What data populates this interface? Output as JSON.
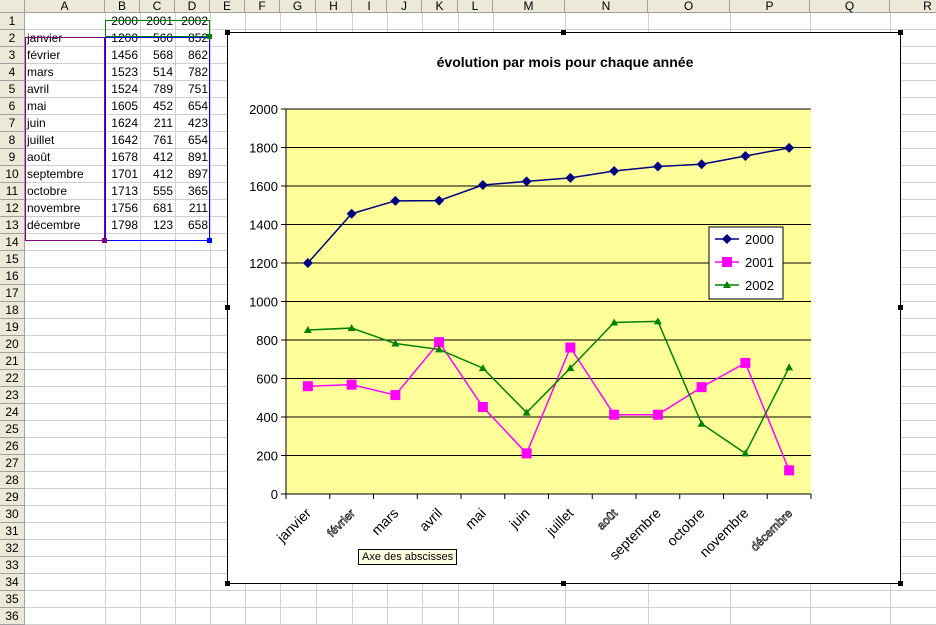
{
  "spreadsheet": {
    "columns": [
      "A",
      "B",
      "C",
      "D",
      "E",
      "F",
      "G",
      "H",
      "I",
      "J",
      "K",
      "L",
      "M",
      "N",
      "O",
      "P",
      "Q",
      "R"
    ],
    "rows": [
      "1",
      "2",
      "3",
      "4",
      "5",
      "6",
      "7",
      "8",
      "9",
      "10",
      "11",
      "12",
      "13",
      "14",
      "15",
      "16",
      "17",
      "18",
      "19",
      "20",
      "21",
      "22",
      "23",
      "24",
      "25",
      "26",
      "27",
      "28",
      "29",
      "30",
      "31",
      "32",
      "33",
      "34",
      "35",
      "36"
    ],
    "header_row": [
      "2000",
      "2001",
      "2002"
    ],
    "data_rows": [
      {
        "month": "janvier",
        "v2000": "1200",
        "v2001": "560",
        "v2002": "852"
      },
      {
        "month": "février",
        "v2000": "1456",
        "v2001": "568",
        "v2002": "862"
      },
      {
        "month": "mars",
        "v2000": "1523",
        "v2001": "514",
        "v2002": "782"
      },
      {
        "month": "avril",
        "v2000": "1524",
        "v2001": "789",
        "v2002": "751"
      },
      {
        "month": "mai",
        "v2000": "1605",
        "v2001": "452",
        "v2002": "654"
      },
      {
        "month": "juin",
        "v2000": "1624",
        "v2001": "211",
        "v2002": "423"
      },
      {
        "month": "juillet",
        "v2000": "1642",
        "v2001": "761",
        "v2002": "654"
      },
      {
        "month": "août",
        "v2000": "1678",
        "v2001": "412",
        "v2002": "891"
      },
      {
        "month": "septembre",
        "v2000": "1701",
        "v2001": "412",
        "v2002": "897"
      },
      {
        "month": "octobre",
        "v2000": "1713",
        "v2001": "555",
        "v2002": "365"
      },
      {
        "month": "novembre",
        "v2000": "1756",
        "v2001": "681",
        "v2002": "211"
      },
      {
        "month": "décembre",
        "v2000": "1798",
        "v2001": "123",
        "v2002": "658"
      }
    ]
  },
  "tooltip": "Axe des abscisses",
  "colors": {
    "plot_background": "#ffff99",
    "series_2000": "#000080",
    "series_2001": "#ff00ff",
    "series_2002": "#008000"
  },
  "chart_data": {
    "type": "line",
    "title": "évolution par mois pour chaque année",
    "categories": [
      "janvier",
      "février",
      "mars",
      "avril",
      "mai",
      "juin",
      "juillet",
      "août",
      "septembre",
      "octobre",
      "novembre",
      "décembre"
    ],
    "series": [
      {
        "name": "2000",
        "marker": "diamond",
        "values": [
          1200,
          1456,
          1523,
          1524,
          1605,
          1624,
          1642,
          1678,
          1701,
          1713,
          1756,
          1798
        ]
      },
      {
        "name": "2001",
        "marker": "square",
        "values": [
          560,
          568,
          514,
          789,
          452,
          211,
          761,
          412,
          412,
          555,
          681,
          123
        ]
      },
      {
        "name": "2002",
        "marker": "triangle",
        "values": [
          852,
          862,
          782,
          751,
          654,
          423,
          654,
          891,
          897,
          365,
          211,
          658
        ]
      }
    ],
    "xlabel": "",
    "ylabel": "",
    "ylim": [
      0,
      2000
    ],
    "yticks": [
      0,
      200,
      400,
      600,
      800,
      1000,
      1200,
      1400,
      1600,
      1800,
      2000
    ],
    "grid": true,
    "legend": "right"
  }
}
